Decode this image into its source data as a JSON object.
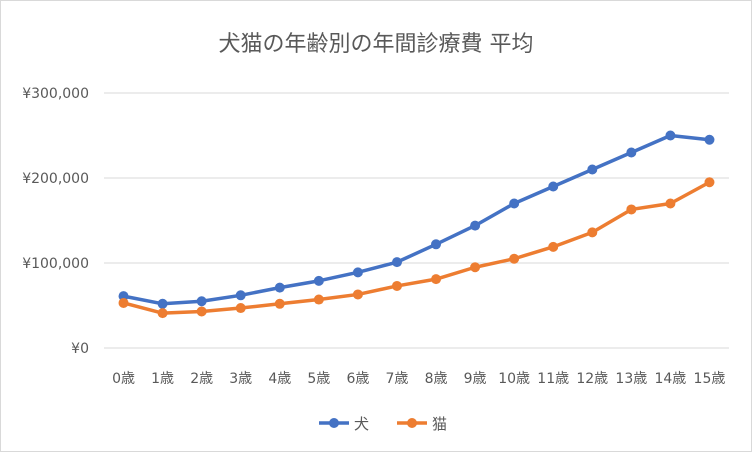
{
  "chart_data": {
    "type": "line",
    "title": "犬猫の年齢別の年間診療費 平均",
    "categories": [
      "0歳",
      "1歳",
      "2歳",
      "3歳",
      "4歳",
      "5歳",
      "6歳",
      "7歳",
      "8歳",
      "9歳",
      "10歳",
      "11歳",
      "12歳",
      "13歳",
      "14歳",
      "15歳"
    ],
    "series": [
      {
        "name": "犬",
        "color": "#4472c4",
        "values": [
          61000,
          52000,
          55000,
          62000,
          71000,
          79000,
          89000,
          101000,
          122000,
          144000,
          170000,
          190000,
          210000,
          230000,
          250000,
          245000
        ]
      },
      {
        "name": "猫",
        "color": "#ed7d31",
        "values": [
          53000,
          41000,
          43000,
          47000,
          52000,
          57000,
          63000,
          73000,
          81000,
          95000,
          105000,
          119000,
          136000,
          163000,
          170000,
          195000
        ]
      }
    ],
    "ylim": [
      0,
      300000
    ],
    "yticks": [
      0,
      100000,
      200000,
      300000
    ],
    "ytick_labels": [
      "¥0",
      "¥100,000",
      "¥200,000",
      "¥300,000"
    ],
    "grid": true,
    "legend_position": "bottom"
  }
}
